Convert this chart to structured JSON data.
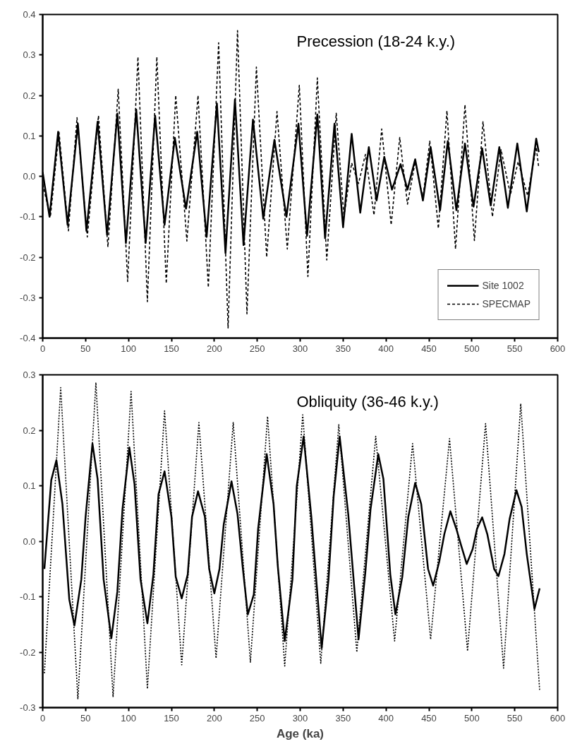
{
  "chart_data": [
    {
      "type": "line",
      "title": "Precession (18-24 k.y.)",
      "legend": "bottom right",
      "grid": false,
      "marker": "none",
      "xlim": [
        0,
        600
      ],
      "xticks": [
        0,
        50,
        100,
        150,
        200,
        250,
        300,
        350,
        400,
        450,
        500,
        550,
        600
      ],
      "ylim": [
        -0.4,
        0.4
      ],
      "yticks": [
        {
          "value": -0.4,
          "label": "-0.4"
        },
        {
          "value": -0.3,
          "label": "-0.3"
        },
        {
          "value": -0.2,
          "label": "-0.2"
        },
        {
          "value": -0.1,
          "label": "-0.1"
        },
        {
          "value": 0,
          "label": "0.0"
        },
        {
          "value": 0.1,
          "label": "0.1"
        },
        {
          "value": 0.2,
          "label": "0.2"
        },
        {
          "value": 0.3,
          "label": "0.3"
        },
        {
          "value": 0.4,
          "label": "0.4"
        }
      ],
      "series": [
        {
          "name": "Site 1002",
          "color": "#000000",
          "line_style": "solid",
          "x": [
            0,
            8,
            18,
            29,
            41,
            51,
            64,
            75,
            87,
            97,
            109,
            120,
            131,
            142,
            154,
            167,
            180,
            191,
            203,
            213,
            224,
            234,
            245,
            257,
            270,
            284,
            298,
            308,
            320,
            329,
            340,
            350,
            360,
            370,
            380,
            389,
            398,
            407,
            417,
            425,
            434,
            443,
            452,
            463,
            472,
            482,
            492,
            502,
            512,
            522,
            532,
            542,
            553,
            564,
            575,
            578
          ],
          "values": [
            0.01,
            -0.1,
            0.11,
            -0.12,
            0.13,
            -0.135,
            0.135,
            -0.145,
            0.155,
            -0.165,
            0.165,
            -0.165,
            0.15,
            -0.12,
            0.095,
            -0.08,
            0.11,
            -0.15,
            0.18,
            -0.19,
            0.19,
            -0.17,
            0.14,
            -0.105,
            0.09,
            -0.1,
            0.13,
            -0.147,
            0.153,
            -0.153,
            0.13,
            -0.126,
            0.105,
            -0.09,
            0.072,
            -0.06,
            0.048,
            -0.033,
            0.03,
            -0.033,
            0.042,
            -0.06,
            0.072,
            -0.084,
            0.087,
            -0.084,
            0.081,
            -0.075,
            0.069,
            -0.072,
            0.072,
            -0.078,
            0.081,
            -0.087,
            0.093,
            0.06
          ]
        },
        {
          "name": "SPECMAP",
          "color": "#000000",
          "line_style": "dashed",
          "x": [
            0,
            9,
            19,
            30,
            40,
            52,
            65,
            76,
            88,
            99,
            111,
            122,
            133,
            144,
            155,
            168,
            181,
            193,
            205,
            216,
            227,
            238,
            249,
            261,
            273,
            285,
            299,
            309,
            320,
            331,
            342,
            351,
            360,
            368,
            376,
            386,
            395,
            406,
            416,
            425,
            434,
            443,
            451,
            461,
            471,
            481,
            492,
            503,
            513,
            524,
            534,
            545,
            554,
            565,
            575,
            578
          ],
          "values": [
            -0.02,
            -0.1,
            0.11,
            -0.135,
            0.145,
            -0.15,
            0.15,
            -0.175,
            0.215,
            -0.26,
            0.295,
            -0.31,
            0.295,
            -0.265,
            0.2,
            -0.16,
            0.2,
            -0.275,
            0.33,
            -0.375,
            0.36,
            -0.34,
            0.27,
            -0.2,
            0.16,
            -0.18,
            0.225,
            -0.248,
            0.243,
            -0.207,
            0.156,
            -0.1,
            0.033,
            -0.018,
            0.054,
            -0.096,
            0.117,
            -0.12,
            0.096,
            -0.069,
            0.036,
            -0.054,
            0.087,
            -0.129,
            0.162,
            -0.18,
            0.177,
            -0.159,
            0.135,
            -0.1,
            0.066,
            -0.045,
            0.036,
            -0.048,
            0.072,
            0.021
          ]
        }
      ]
    },
    {
      "type": "line",
      "title": "Obliquity (36-46 k.y.)",
      "xlabel": "Age (ka)",
      "legend": false,
      "grid": false,
      "marker": "none",
      "xlim": [
        0,
        600
      ],
      "xticks": [
        0,
        50,
        100,
        150,
        200,
        250,
        300,
        350,
        400,
        450,
        500,
        550,
        600
      ],
      "ylim": [
        -0.3,
        0.3
      ],
      "yticks": [
        {
          "value": -0.3,
          "label": "-0.3"
        },
        {
          "value": -0.2,
          "label": "-0.2"
        },
        {
          "value": -0.1,
          "label": "-0.1"
        },
        {
          "value": 0,
          "label": "0.0"
        },
        {
          "value": 0.1,
          "label": "0.1"
        },
        {
          "value": 0.2,
          "label": "0.2"
        },
        {
          "value": 0.3,
          "label": "0.3"
        }
      ],
      "series": [
        {
          "color": "#000000",
          "line_style": "solid",
          "x": [
            2,
            10,
            16,
            23,
            31,
            37,
            45,
            50,
            58,
            64,
            71,
            80,
            87,
            93,
            101,
            107,
            114,
            122,
            129,
            135,
            142,
            150,
            155,
            162,
            169,
            174,
            181,
            189,
            194,
            200,
            206,
            211,
            220,
            227,
            233,
            239,
            246,
            251,
            261,
            269,
            274,
            282,
            291,
            296,
            304,
            313,
            325,
            333,
            339,
            346,
            356,
            368,
            376,
            382,
            391,
            397,
            405,
            411,
            419,
            426,
            434,
            441,
            449,
            455,
            462,
            468,
            475,
            482,
            488,
            494,
            501,
            506,
            512,
            518,
            526,
            531,
            538,
            544,
            552,
            558,
            564,
            573,
            579
          ],
          "values": [
            -0.05,
            0.11,
            0.146,
            0.067,
            -0.105,
            -0.152,
            -0.069,
            0.044,
            0.176,
            0.112,
            -0.069,
            -0.175,
            -0.091,
            0.058,
            0.169,
            0.103,
            -0.069,
            -0.148,
            -0.06,
            0.085,
            0.126,
            0.044,
            -0.064,
            -0.103,
            -0.06,
            0.044,
            0.09,
            0.044,
            -0.05,
            -0.094,
            -0.05,
            0.031,
            0.108,
            0.049,
            -0.046,
            -0.132,
            -0.096,
            0.022,
            0.157,
            0.067,
            -0.046,
            -0.18,
            -0.069,
            0.099,
            0.189,
            0.044,
            -0.193,
            -0.069,
            0.081,
            0.189,
            0.049,
            -0.177,
            -0.055,
            0.058,
            0.157,
            0.112,
            -0.06,
            -0.132,
            -0.064,
            0.044,
            0.105,
            0.067,
            -0.05,
            -0.08,
            -0.037,
            0.013,
            0.054,
            0.022,
            -0.01,
            -0.041,
            -0.014,
            0.022,
            0.043,
            0.013,
            -0.05,
            -0.063,
            -0.023,
            0.04,
            0.092,
            0.062,
            -0.023,
            -0.122,
            -0.085
          ]
        },
        {
          "color": "#000000",
          "line_style": "dotted",
          "x": [
            2,
            21,
            41,
            62,
            82,
            103,
            122,
            142,
            162,
            182,
            202,
            222,
            242,
            262,
            282,
            303,
            324,
            345,
            366,
            388,
            410,
            431,
            452,
            474,
            495,
            516,
            537,
            557,
            579
          ],
          "values": [
            -0.238,
            0.277,
            -0.284,
            0.286,
            -0.281,
            0.27,
            -0.266,
            0.235,
            -0.223,
            0.214,
            -0.211,
            0.214,
            -0.218,
            0.225,
            -0.225,
            0.228,
            -0.22,
            0.21,
            -0.2,
            0.189,
            -0.18,
            0.176,
            -0.177,
            0.185,
            -0.198,
            0.212,
            -0.229,
            0.248,
            -0.268
          ]
        }
      ]
    }
  ]
}
